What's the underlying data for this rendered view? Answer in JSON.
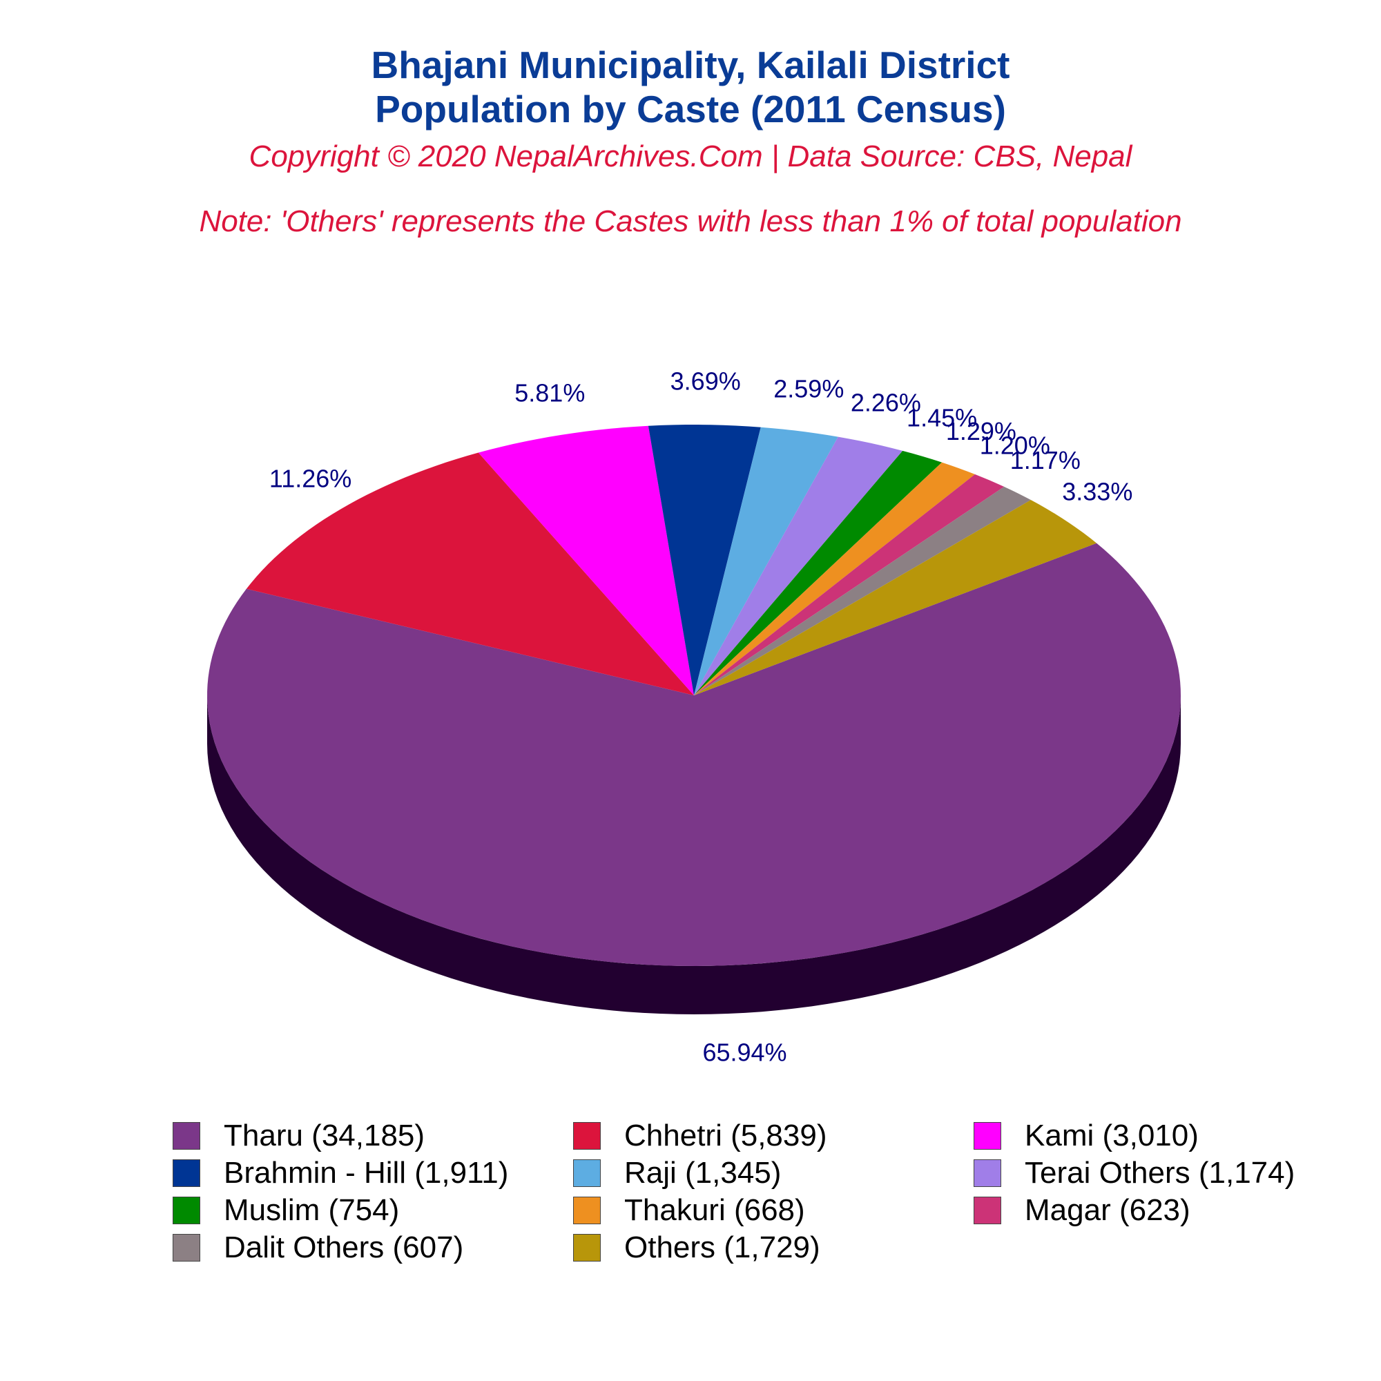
{
  "header": {
    "title_line1": "Bhajani Municipality, Kailali District",
    "title_line2": "Population by Caste (2011 Census)",
    "copyright": "Copyright © 2020 NepalArchives.Com | Data Source: CBS, Nepal",
    "note": "Note: 'Others' represents the Castes with less than 1% of total population"
  },
  "chart_data": {
    "type": "pie",
    "style": "3d",
    "title": "Bhajani Municipality, Kailali District Population by Caste (2011 Census)",
    "legend_position": "bottom",
    "slices": [
      {
        "label": "Tharu",
        "value": 34185,
        "percent_label": "65.94%",
        "legend_label": "Tharu (34,185)",
        "color": "#7b3789",
        "side_color": "#220030"
      },
      {
        "label": "Chhetri",
        "value": 5839,
        "percent_label": "11.26%",
        "legend_label": "Chhetri (5,839)",
        "color": "#dc143c",
        "side_color": "#800000"
      },
      {
        "label": "Kami",
        "value": 3010,
        "percent_label": "5.81%",
        "legend_label": "Kami (3,010)",
        "color": "#ff00ff",
        "side_color": "#a000a0"
      },
      {
        "label": "Brahmin - Hill",
        "value": 1911,
        "percent_label": "3.69%",
        "legend_label": "Brahmin - Hill (1,911)",
        "color": "#003594",
        "side_color": "#000040"
      },
      {
        "label": "Raji",
        "value": 1345,
        "percent_label": "2.59%",
        "legend_label": "Raji (1,345)",
        "color": "#5dade2",
        "side_color": "#1f5f8f"
      },
      {
        "label": "Terai Others",
        "value": 1174,
        "percent_label": "2.26%",
        "legend_label": "Terai Others (1,174)",
        "color": "#a07ee8",
        "side_color": "#5a3c96"
      },
      {
        "label": "Muslim",
        "value": 754,
        "percent_label": "1.45%",
        "legend_label": "Muslim (754)",
        "color": "#008a00",
        "side_color": "#004000"
      },
      {
        "label": "Thakuri",
        "value": 668,
        "percent_label": "1.29%",
        "legend_label": "Thakuri (668)",
        "color": "#ee9020",
        "side_color": "#8a4d00"
      },
      {
        "label": "Magar",
        "value": 623,
        "percent_label": "1.20%",
        "legend_label": "Magar (623)",
        "color": "#cc3377",
        "side_color": "#701540"
      },
      {
        "label": "Dalit Others",
        "value": 607,
        "percent_label": "1.17%",
        "legend_label": "Dalit Others (607)",
        "color": "#8c8084",
        "side_color": "#4a4044"
      },
      {
        "label": "Others",
        "value": 1729,
        "percent_label": "3.33%",
        "legend_label": "Others (1,729)",
        "color": "#b8960a",
        "side_color": "#6a5600"
      }
    ]
  }
}
